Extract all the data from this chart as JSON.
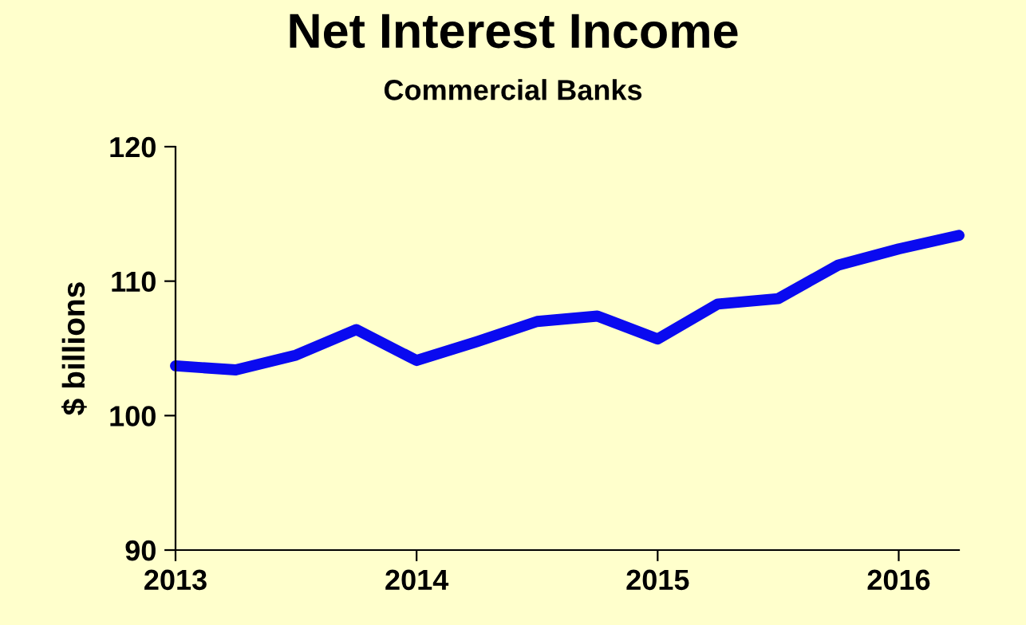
{
  "chart_data": {
    "type": "line",
    "title": "Net Interest Income",
    "subtitle": "Commercial Banks",
    "ylabel": "$ billions",
    "x": [
      2013,
      2013.25,
      2013.5,
      2013.75,
      2014,
      2014.25,
      2014.5,
      2014.75,
      2015,
      2015.25,
      2015.5,
      2015.75,
      2016,
      2016.25
    ],
    "series": [
      {
        "color": "#0a0af0",
        "values": [
          103.7,
          103.4,
          104.5,
          106.4,
          104.1,
          105.5,
          107.0,
          107.4,
          105.7,
          108.3,
          108.7,
          111.2,
          112.4,
          113.4
        ]
      }
    ],
    "xlim": [
      2013,
      2016.25
    ],
    "xticks": [
      2013,
      2014,
      2015,
      2016
    ],
    "ylim": [
      90,
      120
    ],
    "yticks": [
      90,
      100,
      110,
      120
    ],
    "grid": false,
    "legend": false,
    "marker": "none",
    "line_style": "solid"
  }
}
